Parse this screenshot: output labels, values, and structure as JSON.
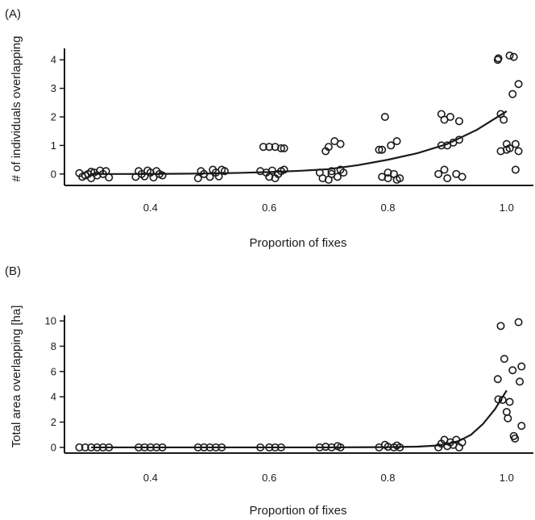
{
  "chart_data": [
    {
      "type": "scatter",
      "panel_label": "(A)",
      "xlabel": "Proportion of fixes",
      "ylabel": "# of individuals overlapping",
      "xlim": [
        0.255,
        1.045
      ],
      "ylim": [
        -0.4,
        4.4
      ],
      "x_ticks": [
        0.4,
        0.6,
        0.8,
        1.0
      ],
      "x_tick_labels": [
        "0.4",
        "0.6",
        "0.8",
        "1.0"
      ],
      "y_ticks": [
        0,
        1,
        2,
        3,
        4
      ],
      "y_tick_labels": [
        "0",
        "1",
        "2",
        "3",
        "4"
      ],
      "points": [
        {
          "x": 0.28,
          "y": 0.03
        },
        {
          "x": 0.285,
          "y": -0.1
        },
        {
          "x": 0.29,
          "y": -0.05
        },
        {
          "x": 0.295,
          "y": 0.0
        },
        {
          "x": 0.3,
          "y": -0.15
        },
        {
          "x": 0.305,
          "y": 0.05
        },
        {
          "x": 0.31,
          "y": -0.05
        },
        {
          "x": 0.315,
          "y": 0.12
        },
        {
          "x": 0.32,
          "y": 0.0
        },
        {
          "x": 0.325,
          "y": 0.1
        },
        {
          "x": 0.33,
          "y": -0.12
        },
        {
          "x": 0.3,
          "y": 0.08
        },
        {
          "x": 0.375,
          "y": -0.1
        },
        {
          "x": 0.38,
          "y": 0.1
        },
        {
          "x": 0.385,
          "y": 0.0
        },
        {
          "x": 0.39,
          "y": -0.08
        },
        {
          "x": 0.395,
          "y": 0.12
        },
        {
          "x": 0.4,
          "y": 0.05
        },
        {
          "x": 0.405,
          "y": -0.12
        },
        {
          "x": 0.41,
          "y": 0.1
        },
        {
          "x": 0.415,
          "y": 0.0
        },
        {
          "x": 0.42,
          "y": -0.05
        },
        {
          "x": 0.48,
          "y": -0.15
        },
        {
          "x": 0.485,
          "y": 0.1
        },
        {
          "x": 0.49,
          "y": 0.0
        },
        {
          "x": 0.5,
          "y": -0.1
        },
        {
          "x": 0.505,
          "y": 0.15
        },
        {
          "x": 0.51,
          "y": 0.05
        },
        {
          "x": 0.515,
          "y": -0.08
        },
        {
          "x": 0.52,
          "y": 0.15
        },
        {
          "x": 0.525,
          "y": 0.1
        },
        {
          "x": 0.585,
          "y": 0.1
        },
        {
          "x": 0.59,
          "y": 0.95
        },
        {
          "x": 0.595,
          "y": 0.05
        },
        {
          "x": 0.6,
          "y": -0.1
        },
        {
          "x": 0.6,
          "y": 0.95
        },
        {
          "x": 0.605,
          "y": 0.12
        },
        {
          "x": 0.61,
          "y": 0.95
        },
        {
          "x": 0.61,
          "y": -0.15
        },
        {
          "x": 0.615,
          "y": 0.0
        },
        {
          "x": 0.62,
          "y": 0.1
        },
        {
          "x": 0.62,
          "y": 0.9
        },
        {
          "x": 0.625,
          "y": 0.9
        },
        {
          "x": 0.625,
          "y": 0.15
        },
        {
          "x": 0.685,
          "y": 0.05
        },
        {
          "x": 0.69,
          "y": -0.15
        },
        {
          "x": 0.695,
          "y": 0.8
        },
        {
          "x": 0.7,
          "y": -0.2
        },
        {
          "x": 0.7,
          "y": 0.95
        },
        {
          "x": 0.705,
          "y": 0.0
        },
        {
          "x": 0.705,
          "y": 0.1
        },
        {
          "x": 0.71,
          "y": 1.15
        },
        {
          "x": 0.715,
          "y": -0.1
        },
        {
          "x": 0.72,
          "y": 1.05
        },
        {
          "x": 0.72,
          "y": 0.15
        },
        {
          "x": 0.725,
          "y": 0.05
        },
        {
          "x": 0.785,
          "y": 0.85
        },
        {
          "x": 0.79,
          "y": -0.1
        },
        {
          "x": 0.79,
          "y": 0.85
        },
        {
          "x": 0.795,
          "y": 2.0
        },
        {
          "x": 0.8,
          "y": 0.05
        },
        {
          "x": 0.8,
          "y": -0.15
        },
        {
          "x": 0.805,
          "y": 1.0
        },
        {
          "x": 0.81,
          "y": 0.0
        },
        {
          "x": 0.815,
          "y": 1.15
        },
        {
          "x": 0.815,
          "y": -0.2
        },
        {
          "x": 0.82,
          "y": -0.15
        },
        {
          "x": 0.885,
          "y": 0.0
        },
        {
          "x": 0.89,
          "y": 2.1
        },
        {
          "x": 0.89,
          "y": 1.0
        },
        {
          "x": 0.895,
          "y": 0.15
        },
        {
          "x": 0.895,
          "y": 1.9
        },
        {
          "x": 0.9,
          "y": -0.15
        },
        {
          "x": 0.9,
          "y": 1.0
        },
        {
          "x": 0.905,
          "y": 2.0
        },
        {
          "x": 0.91,
          "y": 1.1
        },
        {
          "x": 0.915,
          "y": 0.0
        },
        {
          "x": 0.92,
          "y": 1.2
        },
        {
          "x": 0.92,
          "y": 1.85
        },
        {
          "x": 0.925,
          "y": -0.1
        },
        {
          "x": 0.985,
          "y": 4.0
        },
        {
          "x": 0.986,
          "y": 4.05
        },
        {
          "x": 0.99,
          "y": 2.1
        },
        {
          "x": 0.99,
          "y": 0.8
        },
        {
          "x": 0.995,
          "y": 1.9
        },
        {
          "x": 1.0,
          "y": 1.05
        },
        {
          "x": 1.0,
          "y": 0.85
        },
        {
          "x": 1.005,
          "y": 4.15
        },
        {
          "x": 1.005,
          "y": 0.9
        },
        {
          "x": 1.01,
          "y": 2.8
        },
        {
          "x": 1.012,
          "y": 4.1
        },
        {
          "x": 1.015,
          "y": 0.15
        },
        {
          "x": 1.015,
          "y": 1.05
        },
        {
          "x": 1.02,
          "y": 0.8
        },
        {
          "x": 1.02,
          "y": 3.15
        }
      ],
      "fit_curve": {
        "x": [
          0.3,
          0.35,
          0.4,
          0.45,
          0.5,
          0.55,
          0.6,
          0.65,
          0.7,
          0.75,
          0.8,
          0.85,
          0.9,
          0.95,
          1.0
        ],
        "y": [
          0.0,
          0.001,
          0.003,
          0.009,
          0.02,
          0.04,
          0.07,
          0.11,
          0.17,
          0.31,
          0.5,
          0.73,
          1.05,
          1.55,
          2.2
        ]
      }
    },
    {
      "type": "scatter",
      "panel_label": "(B)",
      "xlabel": "Proportion of fixes",
      "ylabel": "Total area overlapping [ha]",
      "xlim": [
        0.255,
        1.045
      ],
      "ylim": [
        -0.45,
        10.45
      ],
      "x_ticks": [
        0.4,
        0.6,
        0.8,
        1.0
      ],
      "x_tick_labels": [
        "0.4",
        "0.6",
        "0.8",
        "1.0"
      ],
      "y_ticks": [
        0,
        2,
        4,
        6,
        8,
        10
      ],
      "y_tick_labels": [
        "0",
        "2",
        "4",
        "6",
        "8",
        "10"
      ],
      "points": [
        {
          "x": 0.28,
          "y": 0.0
        },
        {
          "x": 0.29,
          "y": 0.0
        },
        {
          "x": 0.3,
          "y": 0.0
        },
        {
          "x": 0.31,
          "y": 0.0
        },
        {
          "x": 0.32,
          "y": 0.0
        },
        {
          "x": 0.33,
          "y": 0.0
        },
        {
          "x": 0.38,
          "y": 0.0
        },
        {
          "x": 0.39,
          "y": 0.0
        },
        {
          "x": 0.4,
          "y": 0.0
        },
        {
          "x": 0.41,
          "y": 0.0
        },
        {
          "x": 0.42,
          "y": 0.0
        },
        {
          "x": 0.48,
          "y": 0.0
        },
        {
          "x": 0.49,
          "y": 0.0
        },
        {
          "x": 0.5,
          "y": 0.0
        },
        {
          "x": 0.51,
          "y": 0.0
        },
        {
          "x": 0.52,
          "y": 0.0
        },
        {
          "x": 0.585,
          "y": 0.0
        },
        {
          "x": 0.6,
          "y": 0.0
        },
        {
          "x": 0.61,
          "y": 0.0
        },
        {
          "x": 0.62,
          "y": 0.0
        },
        {
          "x": 0.685,
          "y": 0.0
        },
        {
          "x": 0.695,
          "y": 0.05
        },
        {
          "x": 0.705,
          "y": 0.0
        },
        {
          "x": 0.715,
          "y": 0.1
        },
        {
          "x": 0.72,
          "y": 0.0
        },
        {
          "x": 0.785,
          "y": 0.0
        },
        {
          "x": 0.795,
          "y": 0.2
        },
        {
          "x": 0.8,
          "y": 0.05
        },
        {
          "x": 0.81,
          "y": 0.0
        },
        {
          "x": 0.815,
          "y": 0.15
        },
        {
          "x": 0.82,
          "y": 0.0
        },
        {
          "x": 0.885,
          "y": 0.0
        },
        {
          "x": 0.89,
          "y": 0.3
        },
        {
          "x": 0.895,
          "y": 0.6
        },
        {
          "x": 0.9,
          "y": 0.1
        },
        {
          "x": 0.905,
          "y": 0.4
        },
        {
          "x": 0.91,
          "y": 0.2
        },
        {
          "x": 0.915,
          "y": 0.6
        },
        {
          "x": 0.92,
          "y": 0.0
        },
        {
          "x": 0.925,
          "y": 0.4
        },
        {
          "x": 0.985,
          "y": 5.4
        },
        {
          "x": 0.986,
          "y": 3.8
        },
        {
          "x": 0.99,
          "y": 9.6
        },
        {
          "x": 0.993,
          "y": 3.75
        },
        {
          "x": 0.996,
          "y": 7.0
        },
        {
          "x": 1.0,
          "y": 2.8
        },
        {
          "x": 1.002,
          "y": 2.3
        },
        {
          "x": 1.005,
          "y": 3.6
        },
        {
          "x": 1.01,
          "y": 6.1
        },
        {
          "x": 1.012,
          "y": 0.9
        },
        {
          "x": 1.014,
          "y": 0.7
        },
        {
          "x": 1.02,
          "y": 9.9
        },
        {
          "x": 1.022,
          "y": 5.2
        },
        {
          "x": 1.025,
          "y": 6.4
        },
        {
          "x": 1.025,
          "y": 1.7
        }
      ],
      "fit_curve": {
        "x": [
          0.3,
          0.4,
          0.5,
          0.6,
          0.7,
          0.75,
          0.8,
          0.85,
          0.88,
          0.9,
          0.92,
          0.94,
          0.96,
          0.98,
          1.0
        ],
        "y": [
          0.0,
          0.0,
          0.0,
          0.0,
          0.0,
          0.01,
          0.02,
          0.06,
          0.14,
          0.26,
          0.52,
          1.0,
          1.85,
          3.0,
          4.5
        ]
      }
    }
  ]
}
